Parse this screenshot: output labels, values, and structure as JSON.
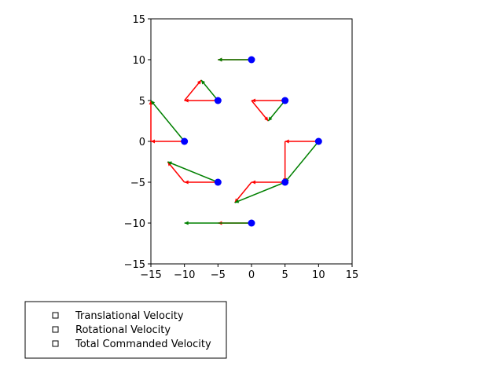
{
  "chart_data": {
    "type": "scatter",
    "title": "",
    "xlabel": "",
    "ylabel": "",
    "xlim": [
      -15,
      15
    ],
    "ylim": [
      -15,
      15
    ],
    "xticks": [
      -15,
      -10,
      -5,
      0,
      5,
      10,
      15
    ],
    "yticks": [
      -15,
      -10,
      -5,
      0,
      5,
      10,
      15
    ],
    "xtick_labels": [
      "−15",
      "−10",
      "−5",
      "0",
      "5",
      "10",
      "15"
    ],
    "ytick_labels": [
      "−15",
      "−10",
      "−5",
      "0",
      "5",
      "10",
      "15"
    ],
    "grid": false,
    "points": [
      {
        "x": 0,
        "y": 10
      },
      {
        "x": 5,
        "y": 5
      },
      {
        "x": 10,
        "y": 0
      },
      {
        "x": 5,
        "y": -5
      },
      {
        "x": 0,
        "y": -10
      },
      {
        "x": -5,
        "y": -5
      },
      {
        "x": -10,
        "y": 0
      },
      {
        "x": -5,
        "y": 5
      }
    ],
    "series": [
      {
        "name": "Translational Velocity",
        "color": "#ff0000",
        "segments": [
          {
            "x0": 0,
            "y0": 10,
            "x1": -5,
            "y1": 10
          },
          {
            "x0": 5,
            "y0": 5,
            "x1": 0,
            "y1": 5
          },
          {
            "x0": 10,
            "y0": 0,
            "x1": 5,
            "y1": 0
          },
          {
            "x0": 5,
            "y0": -5,
            "x1": 0,
            "y1": -5
          },
          {
            "x0": 0,
            "y0": -10,
            "x1": -5,
            "y1": -10
          },
          {
            "x0": -5,
            "y0": -5,
            "x1": -10,
            "y1": -5
          },
          {
            "x0": -10,
            "y0": 0,
            "x1": -15,
            "y1": 0
          },
          {
            "x0": -5,
            "y0": 5,
            "x1": -10,
            "y1": 5
          }
        ]
      },
      {
        "name": "Rotational Velocity",
        "color": "#ff0000",
        "segments": [
          {
            "x0": -5,
            "y0": 10,
            "x1": -5,
            "y1": 10
          },
          {
            "x0": 0,
            "y0": 5,
            "x1": 2.5,
            "y1": 2.5
          },
          {
            "x0": 5,
            "y0": 0,
            "x1": 5,
            "y1": -5
          },
          {
            "x0": 0,
            "y0": -5,
            "x1": -2.5,
            "y1": -7.5
          },
          {
            "x0": -5,
            "y0": -10,
            "x1": -5,
            "y1": -10
          },
          {
            "x0": -10,
            "y0": -5,
            "x1": -12.5,
            "y1": -2.5
          },
          {
            "x0": -15,
            "y0": 0,
            "x1": -15,
            "y1": 5
          },
          {
            "x0": -10,
            "y0": 5,
            "x1": -7.5,
            "y1": 7.5
          }
        ]
      },
      {
        "name": "Total Commanded Velocity",
        "color": "#008000",
        "segments": [
          {
            "x0": 0,
            "y0": 10,
            "x1": -5,
            "y1": 10
          },
          {
            "x0": 5,
            "y0": 5,
            "x1": 2.5,
            "y1": 2.5
          },
          {
            "x0": 10,
            "y0": 0,
            "x1": 5,
            "y1": -5
          },
          {
            "x0": 5,
            "y0": -5,
            "x1": -2.5,
            "y1": -7.5
          },
          {
            "x0": 0,
            "y0": -10,
            "x1": -10,
            "y1": -10
          },
          {
            "x0": -5,
            "y0": -5,
            "x1": -12.5,
            "y1": -2.5
          },
          {
            "x0": -10,
            "y0": 0,
            "x1": -15,
            "y1": 5
          },
          {
            "x0": -5,
            "y0": 5,
            "x1": -7.5,
            "y1": 7.5
          }
        ]
      }
    ],
    "point_color": "#0000ff",
    "legend": {
      "placement": "below-left",
      "entries": [
        "Translational Velocity",
        "Rotational Velocity",
        "Total Commanded Velocity"
      ]
    }
  }
}
